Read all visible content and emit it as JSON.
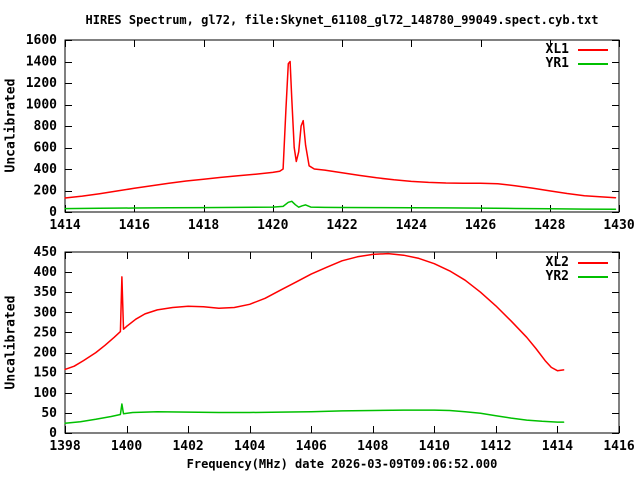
{
  "title": "HIRES Spectrum, gl72, file:Skynet_61108_gl72_148780_99049.spect.cyb.txt",
  "colors": {
    "xl_red": "#ff0000",
    "yr_green": "#00c000",
    "axis": "#000000",
    "background": "#ffffff"
  },
  "chart_data": [
    {
      "type": "line",
      "panel": "top",
      "ylabel": "Uncalibrated",
      "xlim": [
        1414,
        1430
      ],
      "ylim": [
        0,
        1600
      ],
      "xticks": [
        1414,
        1416,
        1418,
        1420,
        1422,
        1424,
        1426,
        1428,
        1430
      ],
      "yticks": [
        0,
        200,
        400,
        600,
        800,
        1000,
        1200,
        1400,
        1600
      ],
      "grid": false,
      "legend_position": "top-right",
      "series": [
        {
          "name": "XL1",
          "color": "#ff0000",
          "x": [
            1414,
            1414.5,
            1415,
            1415.5,
            1416,
            1416.5,
            1417,
            1417.5,
            1418,
            1418.5,
            1419,
            1419.5,
            1420,
            1420.2,
            1420.3,
            1420.38,
            1420.45,
            1420.5,
            1420.55,
            1420.62,
            1420.68,
            1420.75,
            1420.82,
            1420.88,
            1420.95,
            1421.05,
            1421.2,
            1421.5,
            1422,
            1422.5,
            1423,
            1423.5,
            1424,
            1424.5,
            1425,
            1425.5,
            1426,
            1426.5,
            1427,
            1427.5,
            1428,
            1428.5,
            1429,
            1429.5,
            1429.9
          ],
          "y": [
            130,
            148,
            170,
            195,
            220,
            245,
            268,
            288,
            305,
            322,
            338,
            352,
            368,
            380,
            400,
            950,
            1380,
            1400,
            1050,
            600,
            470,
            560,
            800,
            850,
            620,
            430,
            400,
            390,
            365,
            340,
            318,
            300,
            285,
            275,
            270,
            268,
            268,
            262,
            245,
            222,
            196,
            172,
            152,
            140,
            133
          ]
        },
        {
          "name": "YR1",
          "color": "#00c000",
          "x": [
            1414,
            1415,
            1416,
            1417,
            1418,
            1419,
            1420,
            1420.3,
            1420.45,
            1420.55,
            1420.65,
            1420.75,
            1420.85,
            1420.95,
            1421.1,
            1421.5,
            1422,
            1423,
            1424,
            1425,
            1426,
            1427,
            1428,
            1429,
            1429.9
          ],
          "y": [
            32,
            34,
            37,
            39,
            41,
            43,
            46,
            52,
            90,
            100,
            68,
            45,
            58,
            66,
            46,
            43,
            42,
            41,
            40,
            38,
            36,
            33,
            30,
            27,
            25
          ]
        }
      ]
    },
    {
      "type": "line",
      "panel": "bottom",
      "ylabel": "Uncalibrated",
      "xlabel": "Frequency(MHz) date 2026-03-09T09:06:52.000",
      "xlim": [
        1398,
        1416
      ],
      "ylim": [
        0,
        450
      ],
      "xticks": [
        1398,
        1400,
        1402,
        1404,
        1406,
        1408,
        1410,
        1412,
        1414,
        1416
      ],
      "yticks": [
        0,
        50,
        100,
        150,
        200,
        250,
        300,
        350,
        400,
        450
      ],
      "grid": false,
      "legend_position": "top-right",
      "series": [
        {
          "name": "XL2",
          "color": "#ff0000",
          "x": [
            1398,
            1398.3,
            1398.6,
            1399,
            1399.3,
            1399.6,
            1399.8,
            1399.85,
            1399.9,
            1400,
            1400.3,
            1400.6,
            1401,
            1401.5,
            1402,
            1402.5,
            1403,
            1403.5,
            1404,
            1404.5,
            1405,
            1405.5,
            1406,
            1406.5,
            1407,
            1407.5,
            1408,
            1408.5,
            1409,
            1409.5,
            1410,
            1410.5,
            1411,
            1411.5,
            1412,
            1412.5,
            1413,
            1413.3,
            1413.6,
            1413.8,
            1414,
            1414.2
          ],
          "y": [
            158,
            166,
            180,
            200,
            218,
            238,
            252,
            388,
            258,
            265,
            283,
            296,
            306,
            312,
            315,
            314,
            310,
            312,
            320,
            335,
            355,
            375,
            395,
            412,
            428,
            438,
            444,
            446,
            442,
            434,
            421,
            403,
            380,
            350,
            316,
            278,
            238,
            210,
            180,
            163,
            155,
            157
          ]
        },
        {
          "name": "YR2",
          "color": "#00c000",
          "x": [
            1398,
            1398.5,
            1399,
            1399.5,
            1399.8,
            1399.85,
            1399.9,
            1400.2,
            1400.6,
            1401,
            1402,
            1403,
            1404,
            1405,
            1406,
            1407,
            1408,
            1409,
            1410,
            1410.5,
            1411,
            1411.5,
            1412,
            1412.5,
            1413,
            1413.5,
            1414,
            1414.2
          ],
          "y": [
            24,
            28,
            34,
            41,
            46,
            72,
            48,
            51,
            52,
            53,
            52,
            51,
            51,
            52,
            53,
            55,
            56,
            57,
            57,
            56,
            53,
            49,
            43,
            37,
            32,
            29,
            27,
            27
          ]
        }
      ]
    }
  ]
}
